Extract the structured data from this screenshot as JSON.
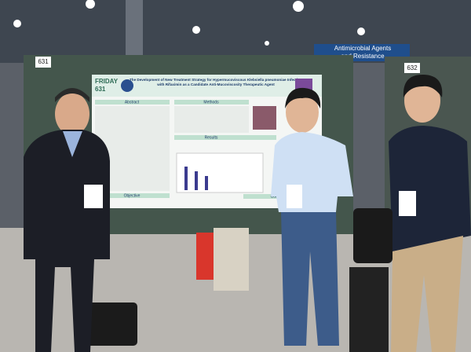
{
  "signs": {
    "booth_left": "631",
    "booth_right": "632",
    "banner": [
      "Antimicrobial Agents",
      "and Resistance"
    ]
  },
  "poster": {
    "day": "FRIDAY",
    "number": "631",
    "title": [
      "The Development of New Treatment Strategy for Hypermucoviscous Klebsiella pneumoniae Infection",
      "with Rifaximin as a Candidate Anti-Mucoviscosity Therapeutic Agent"
    ],
    "sections": {
      "abstract": "Abstract",
      "methods": "Methods",
      "results": "Results",
      "objective": "Objective",
      "conclusion": "Conclusion"
    }
  }
}
